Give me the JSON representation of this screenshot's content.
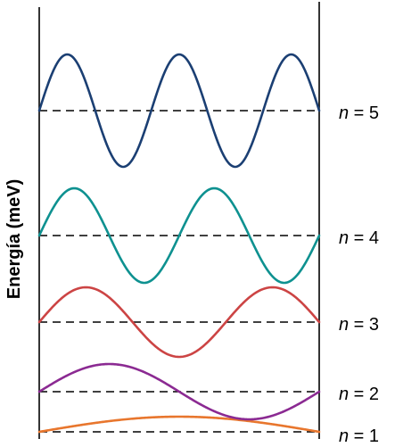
{
  "axis": {
    "ylabel": "Energía (meV)"
  },
  "levels": [
    {
      "n": 1,
      "label_var": "n",
      "label_eq": " = 1",
      "color": "#e8762d",
      "half_wavelengths": 1
    },
    {
      "n": 2,
      "label_var": "n",
      "label_eq": " = 2",
      "color": "#8b2a92",
      "half_wavelengths": 2
    },
    {
      "n": 3,
      "label_var": "n",
      "label_eq": " = 3",
      "color": "#cc4444",
      "half_wavelengths": 3
    },
    {
      "n": 4,
      "label_var": "n",
      "label_eq": " = 4",
      "color": "#0e9190",
      "half_wavelengths": 4
    },
    {
      "n": 5,
      "label_var": "n",
      "label_eq": " = 5",
      "color": "#1b3f73",
      "half_wavelengths": 5
    }
  ]
}
